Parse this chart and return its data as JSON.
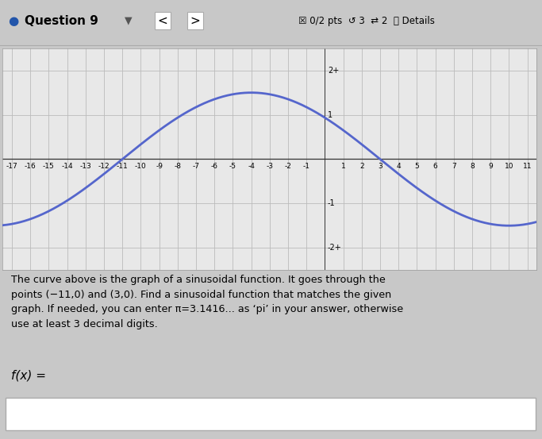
{
  "xlim": [
    -17.5,
    11.5
  ],
  "ylim": [
    -2.5,
    2.5
  ],
  "amplitude": 1.5,
  "period": 28,
  "phase_shift": 3,
  "curve_color": "#5566CC",
  "plot_bg": "#e8e8e8",
  "grid_color": "#bbbbbb",
  "xticks": [
    -17,
    -16,
    -15,
    -14,
    -13,
    -12,
    -11,
    -10,
    -9,
    -8,
    -7,
    -6,
    -5,
    -4,
    -3,
    -2,
    -1,
    0,
    1,
    2,
    3,
    4,
    5,
    6,
    7,
    8,
    9,
    10,
    11
  ],
  "yticks": [
    -2,
    -1,
    0,
    1,
    2
  ],
  "curve_linewidth": 2.0,
  "text_block": "The curve above is the graph of a sinusoidal function. It goes through the\npoints (−11,0) and (3,0). Find a sinusoidal function that matches the given\ngraph. If needed, you can enter π=3.1416... as ‘pi’ in your answer, otherwise\nuse at least 3 decimal digits.",
  "fx_label": "f(x) ="
}
